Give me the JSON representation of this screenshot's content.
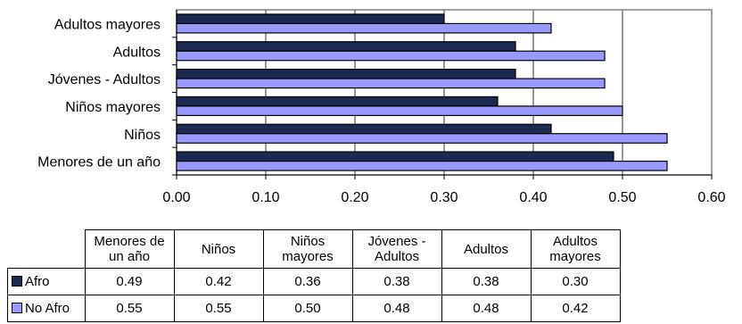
{
  "chart_data": {
    "type": "bar",
    "orientation": "horizontal",
    "categories": [
      "Menores de un año",
      "Niños",
      "Niños mayores",
      "Jóvenes - Adultos",
      "Adultos",
      "Adultos mayores"
    ],
    "series": [
      {
        "name": "Afro",
        "color": "#1c2951",
        "values": [
          0.49,
          0.42,
          0.36,
          0.38,
          0.38,
          0.3
        ]
      },
      {
        "name": "No Afro",
        "color": "#9999ff",
        "values": [
          0.55,
          0.55,
          0.5,
          0.48,
          0.48,
          0.42
        ]
      }
    ],
    "xlim": [
      0,
      0.6
    ],
    "x_ticks": [
      "0.00",
      "0.10",
      "0.20",
      "0.30",
      "0.40",
      "0.50",
      "0.60"
    ],
    "grid": "vertical",
    "title": "",
    "xlabel": "",
    "ylabel": ""
  },
  "table": {
    "headers": [
      "Menores de\nun año",
      "Niños",
      "Niños\nmayores",
      "Jóvenes -\nAdultos",
      "Adultos",
      "Adultos\nmayores"
    ],
    "rows": [
      {
        "label": "Afro",
        "color": "#1c2951",
        "values": [
          "0.49",
          "0.42",
          "0.36",
          "0.38",
          "0.38",
          "0.30"
        ]
      },
      {
        "label": "No Afro",
        "color": "#9999ff",
        "values": [
          "0.55",
          "0.55",
          "0.50",
          "0.48",
          "0.48",
          "0.42"
        ]
      }
    ]
  }
}
